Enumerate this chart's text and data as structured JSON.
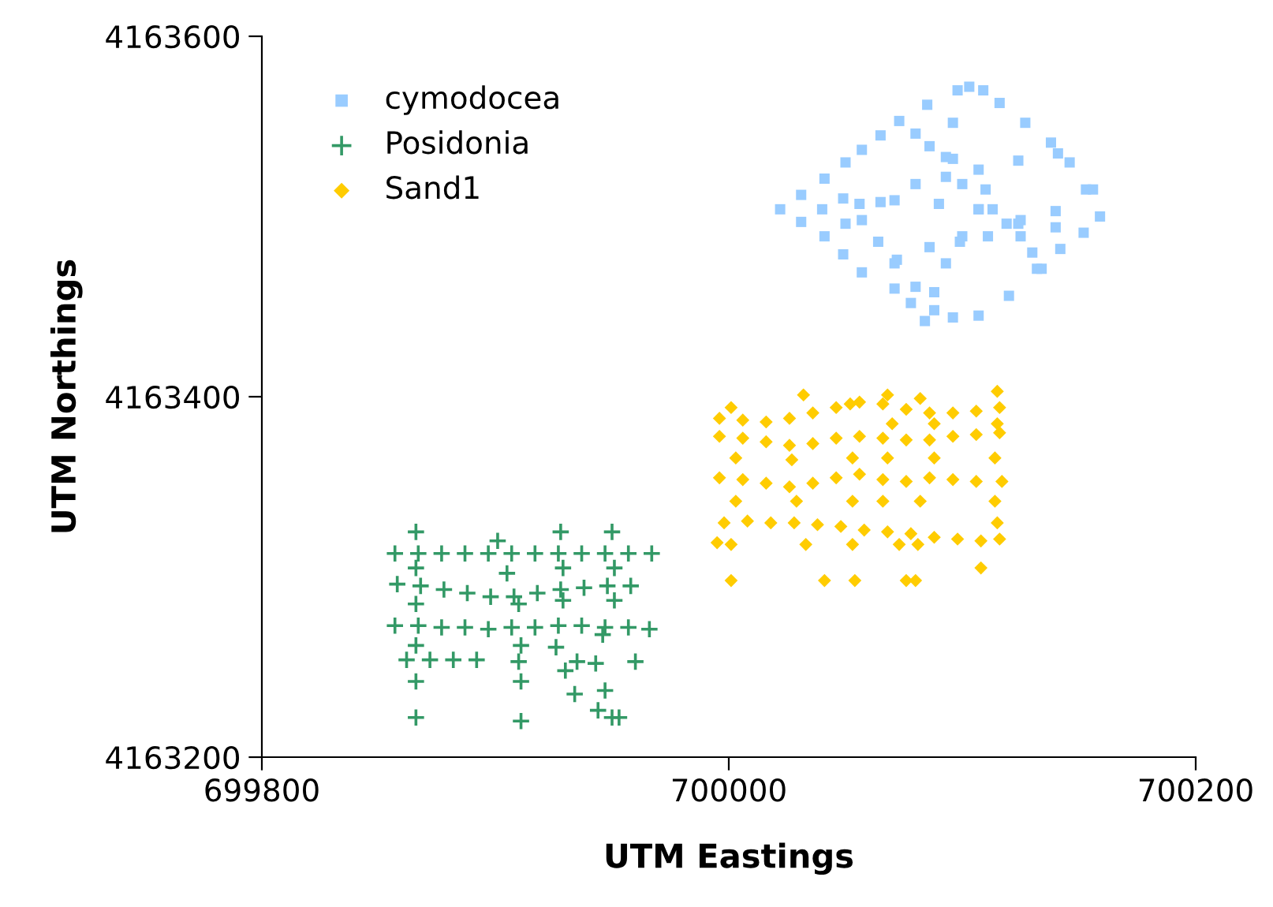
{
  "chart_data": {
    "type": "scatter",
    "xlabel": "UTM Eastings",
    "ylabel": "UTM Northings",
    "xlim": [
      699800,
      700200
    ],
    "xticks": [
      699800,
      700000,
      700200
    ],
    "ylim": [
      4163200,
      4163600
    ],
    "yticks": [
      4163200,
      4163400,
      4163600
    ],
    "grid": false,
    "legend": "top left",
    "series": [
      {
        "name": "cymodocea",
        "color": "#99ccff",
        "marker": "square",
        "x": [
          700022,
          700031,
          700041,
          700050,
          700057,
          700065,
          700073,
          700085,
          700098,
          700103,
          700109,
          700116,
          700127,
          700138,
          700146,
          700153,
          700159,
          700031,
          700041,
          700049,
          700057,
          700071,
          700078,
          700084,
          700096,
          700107,
          700120,
          700132,
          700142,
          700152,
          700040,
          700056,
          700071,
          700090,
          700107,
          700125,
          700140,
          700050,
          700065,
          700080,
          700093,
          700107,
          700124,
          700141,
          700072,
          700086,
          700099,
          700111,
          700124,
          700140,
          700156,
          700080,
          700086,
          700096,
          700110,
          700113,
          700119,
          700125,
          700130,
          700134,
          700096,
          700093,
          700100,
          700107,
          700100,
          700093,
          700088,
          700049,
          700057,
          700064,
          700071,
          700080,
          700088
        ],
        "values": [
          4163504,
          4163512,
          4163521,
          4163530,
          4163537,
          4163545,
          4163553,
          4163562,
          4163570,
          4163572,
          4163570,
          4163563,
          4163552,
          4163541,
          4163530,
          4163515,
          4163500,
          4163497,
          4163489,
          4163479,
          4163469,
          4163460,
          4163452,
          4163442,
          4163444,
          4163445,
          4163456,
          4163471,
          4163482,
          4163491,
          4163504,
          4163507,
          4163509,
          4163507,
          4163504,
          4163498,
          4163494,
          4163496,
          4163508,
          4163518,
          4163522,
          4163526,
          4163531,
          4163535,
          4163476,
          4163483,
          4163486,
          4163489,
          4163496,
          4163503,
          4163515,
          4163546,
          4163539,
          4163532,
          4163515,
          4163504,
          4163496,
          4163489,
          4163480,
          4163471,
          4163552,
          4163533,
          4163518,
          4163504,
          4163489,
          4163474,
          4163458,
          4163510,
          4163498,
          4163486,
          4163474,
          4163461,
          4163448
        ]
      },
      {
        "name": "Posidonia",
        "color": "#339966",
        "marker": "cross",
        "x": [
          699857,
          699867,
          699877,
          699887,
          699897,
          699907,
          699917,
          699927,
          699937,
          699947,
          699957,
          699967,
          699858,
          699868,
          699878,
          699888,
          699898,
          699908,
          699918,
          699928,
          699938,
          699948,
          699958,
          699857,
          699867,
          699877,
          699887,
          699897,
          699907,
          699917,
          699927,
          699937,
          699947,
          699957,
          699966,
          699862,
          699872,
          699882,
          699892,
          699910,
          699935,
          699960,
          699866,
          699866,
          699866,
          699866,
          699866,
          699866,
          699901,
          699905,
          699910,
          699911,
          699911,
          699911,
          699928,
          699929,
          699929,
          699926,
          699930,
          699934,
          699944,
          699950,
          699950,
          699951,
          699951,
          699946,
          699943,
          699947,
          699953
        ],
        "values": [
          4163313,
          4163313,
          4163313,
          4163313,
          4163313,
          4163313,
          4163313,
          4163313,
          4163313,
          4163313,
          4163313,
          4163313,
          4163296,
          4163295,
          4163293,
          4163291,
          4163289,
          4163289,
          4163291,
          4163293,
          4163294,
          4163295,
          4163295,
          4163273,
          4163273,
          4163272,
          4163272,
          4163271,
          4163272,
          4163272,
          4163273,
          4163273,
          4163272,
          4163272,
          4163271,
          4163254,
          4163254,
          4163254,
          4163254,
          4163253,
          4163253,
          4163253,
          4163325,
          4163305,
          4163285,
          4163262,
          4163242,
          4163222,
          4163320,
          4163302,
          4163285,
          4163262,
          4163242,
          4163220,
          4163325,
          4163305,
          4163287,
          4163261,
          4163248,
          4163235,
          4163226,
          4163222,
          4163325,
          4163305,
          4163287,
          4163268,
          4163252,
          4163237,
          4163222
        ]
      },
      {
        "name": "Sand1",
        "color": "#ffcc00",
        "marker": "diamond",
        "x": [
          699996,
          700006,
          700016,
          700026,
          700036,
          700046,
          700056,
          700066,
          700076,
          700086,
          700096,
          700106,
          700116,
          699996,
          700006,
          700016,
          700026,
          700036,
          700046,
          700056,
          700066,
          700076,
          700086,
          700096,
          700106,
          700116,
          699996,
          700006,
          700016,
          700026,
          700036,
          700046,
          700056,
          700066,
          700076,
          700086,
          700096,
          700106,
          700117,
          699998,
          700008,
          700018,
          700028,
          700038,
          700048,
          700058,
          700068,
          700078,
          700088,
          700098,
          700108,
          700116,
          700001,
          700003,
          700003,
          700001,
          700001,
          700032,
          700027,
          700029,
          700033,
          700041,
          700052,
          700053,
          700053,
          700053,
          700054,
          700068,
          700070,
          700068,
          700066,
          700073,
          700076,
          700082,
          700088,
          700088,
          700082,
          700081,
          700080,
          700115,
          700115,
          700114,
          700114,
          700115,
          700108,
          699995
        ],
        "values": [
          4163388,
          4163387,
          4163386,
          4163388,
          4163391,
          4163394,
          4163397,
          4163396,
          4163393,
          4163391,
          4163391,
          4163392,
          4163394,
          4163378,
          4163377,
          4163375,
          4163373,
          4163374,
          4163377,
          4163378,
          4163377,
          4163376,
          4163376,
          4163378,
          4163379,
          4163380,
          4163355,
          4163354,
          4163352,
          4163350,
          4163352,
          4163355,
          4163357,
          4163354,
          4163353,
          4163355,
          4163354,
          4163353,
          4163353,
          4163330,
          4163331,
          4163330,
          4163330,
          4163329,
          4163328,
          4163326,
          4163325,
          4163324,
          4163322,
          4163321,
          4163320,
          4163321,
          4163394,
          4163366,
          4163342,
          4163318,
          4163298,
          4163401,
          4163365,
          4163342,
          4163318,
          4163298,
          4163396,
          4163366,
          4163342,
          4163318,
          4163298,
          4163401,
          4163385,
          4163366,
          4163342,
          4163318,
          4163298,
          4163399,
          4163385,
          4163366,
          4163342,
          4163318,
          4163298,
          4163403,
          4163385,
          4163366,
          4163342,
          4163330,
          4163305,
          4163319
        ]
      }
    ]
  }
}
